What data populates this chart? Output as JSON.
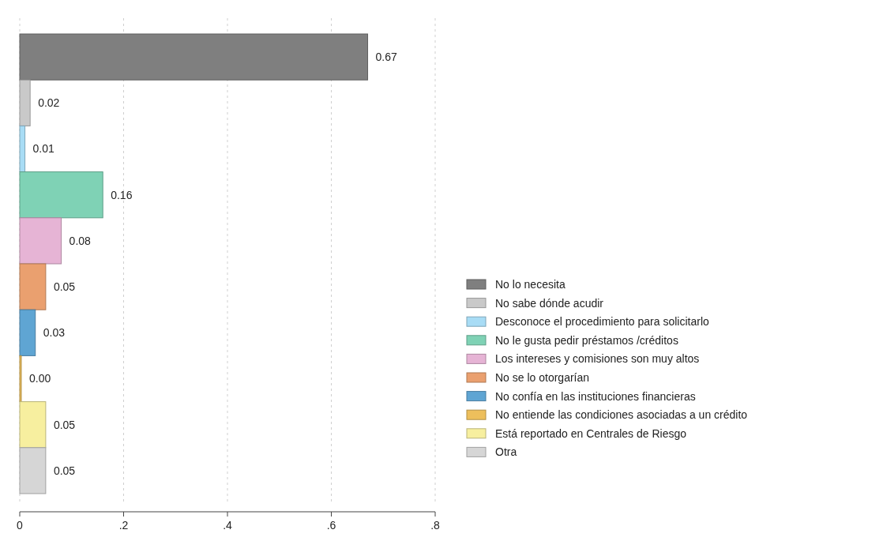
{
  "chart_data": {
    "type": "bar",
    "orientation": "horizontal",
    "categories": [
      null,
      null,
      null,
      null,
      null,
      null,
      null,
      null,
      null,
      null
    ],
    "xlim": [
      0,
      0.8
    ],
    "xticks": [
      0,
      {
        "value": 0.2,
        "label": ".2"
      },
      {
        "value": 0.4,
        "label": ".4"
      },
      {
        "value": 0.6,
        "label": ".6"
      },
      {
        "value": 0.8,
        "label": ".8"
      }
    ],
    "grid": "x",
    "legend": "right",
    "series": [
      {
        "name": "No lo necesita",
        "color": "#7f7f7f",
        "values": [
          0.67,
          null,
          null,
          null,
          null,
          null,
          null,
          null,
          null,
          null
        ],
        "value_labels": [
          "0.67",
          null,
          null,
          null,
          null,
          null,
          null,
          null,
          null,
          null
        ]
      },
      {
        "name": "No sabe dónde acudir",
        "color": "#c9c9c9",
        "values": [
          null,
          0.02,
          null,
          null,
          null,
          null,
          null,
          null,
          null,
          null
        ],
        "value_labels": [
          null,
          "0.02",
          null,
          null,
          null,
          null,
          null,
          null,
          null,
          null
        ]
      },
      {
        "name": "Desconoce el procedimiento para solicitarlo",
        "color": "#a8dcf5",
        "values": [
          null,
          null,
          0.01,
          null,
          null,
          null,
          null,
          null,
          null,
          null
        ],
        "value_labels": [
          null,
          null,
          "0.01",
          null,
          null,
          null,
          null,
          null,
          null,
          null
        ]
      },
      {
        "name": "No le gusta pedir préstamos /créditos",
        "color": "#7fd2b5",
        "values": [
          null,
          null,
          null,
          0.16,
          null,
          null,
          null,
          null,
          null,
          null
        ],
        "value_labels": [
          null,
          null,
          null,
          "0.16",
          null,
          null,
          null,
          null,
          null,
          null
        ]
      },
      {
        "name": "Los intereses y comisiones son muy altos",
        "color": "#e6b4d5",
        "values": [
          null,
          null,
          null,
          null,
          0.08,
          null,
          null,
          null,
          null,
          null
        ],
        "value_labels": [
          null,
          null,
          null,
          null,
          "0.08",
          null,
          null,
          null,
          null,
          null
        ]
      },
      {
        "name": "No se lo otorgarían",
        "color": "#eaa06f",
        "values": [
          null,
          null,
          null,
          null,
          null,
          0.05,
          null,
          null,
          null,
          null
        ],
        "value_labels": [
          null,
          null,
          null,
          null,
          null,
          "0.05",
          null,
          null,
          null,
          null
        ]
      },
      {
        "name": "No confía en las instituciones financieras",
        "color": "#5fa5d3",
        "values": [
          null,
          null,
          null,
          null,
          null,
          null,
          0.03,
          null,
          null,
          null
        ],
        "value_labels": [
          null,
          null,
          null,
          null,
          null,
          null,
          "0.03",
          null,
          null,
          null
        ]
      },
      {
        "name": "No entiende las condiciones asociadas a un crédito",
        "color": "#edbf5c",
        "values": [
          null,
          null,
          null,
          null,
          null,
          null,
          null,
          0.003,
          null,
          null
        ],
        "value_labels": [
          null,
          null,
          null,
          null,
          null,
          null,
          null,
          "0.00",
          null,
          null
        ]
      },
      {
        "name": "Está reportado en Centrales de Riesgo",
        "color": "#f7ef9f",
        "values": [
          null,
          null,
          null,
          null,
          null,
          null,
          null,
          null,
          0.05,
          null
        ],
        "value_labels": [
          null,
          null,
          null,
          null,
          null,
          null,
          null,
          null,
          "0.05",
          null
        ]
      },
      {
        "name": "Otra",
        "color": "#d6d6d6",
        "values": [
          null,
          null,
          null,
          null,
          null,
          null,
          null,
          null,
          null,
          0.05
        ],
        "value_labels": [
          null,
          null,
          null,
          null,
          null,
          null,
          null,
          null,
          null,
          "0.05"
        ]
      }
    ]
  }
}
